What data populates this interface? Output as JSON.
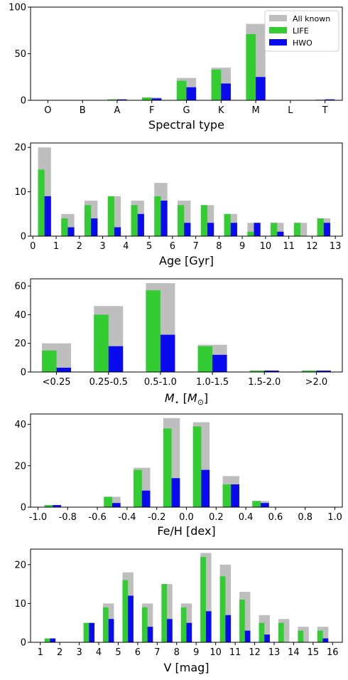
{
  "colors": {
    "all_known": "#bebebe",
    "life": "#33cc33",
    "hwo": "#0a0aee"
  },
  "legend_labels": [
    "All known",
    "LIFE",
    "HWO"
  ],
  "chart_data": [
    {
      "type": "bar",
      "id": "spectral",
      "xlabel": "Spectral type",
      "categories": [
        "O",
        "B",
        "A",
        "F",
        "G",
        "K",
        "M",
        "L",
        "T"
      ],
      "x_tick_labels": [
        "O",
        "B",
        "A",
        "F",
        "G",
        "K",
        "M",
        "L",
        "T"
      ],
      "ylim": [
        0,
        100
      ],
      "yticks": [
        0,
        50,
        100
      ],
      "legend": "top-right",
      "series": [
        {
          "name": "All known",
          "values": [
            0,
            0,
            1,
            3,
            24,
            35,
            82,
            0,
            1
          ]
        },
        {
          "name": "LIFE",
          "values": [
            0,
            0,
            1,
            3,
            21,
            33,
            71,
            0,
            0
          ]
        },
        {
          "name": "HWO",
          "values": [
            0,
            0,
            1,
            2,
            14,
            18,
            25,
            0,
            1
          ]
        }
      ]
    },
    {
      "type": "bar",
      "id": "age",
      "xlabel": "Age [Gyr]",
      "x": [
        0.5,
        1.5,
        2.5,
        3.5,
        4.5,
        5.5,
        6.5,
        7.5,
        8.5,
        9.5,
        10.5,
        11.5,
        12.5
      ],
      "bin_width": 1,
      "xlim": [
        -0.1,
        13.3
      ],
      "x_tick_values": [
        0,
        1,
        2,
        3,
        4,
        5,
        6,
        7,
        8,
        9,
        10,
        11,
        12,
        13
      ],
      "x_tick_labels": [
        "0",
        "1",
        "2",
        "3",
        "4",
        "5",
        "6",
        "7",
        "8",
        "9",
        "10",
        "11",
        "12",
        "13"
      ],
      "ylim": [
        0,
        21
      ],
      "yticks": [
        0,
        10,
        20
      ],
      "series": [
        {
          "name": "All known",
          "values": [
            20,
            5,
            8,
            9,
            8,
            12,
            8,
            7,
            5,
            3,
            3,
            3,
            4
          ]
        },
        {
          "name": "LIFE",
          "values": [
            15,
            4,
            7,
            9,
            7,
            9,
            7,
            7,
            5,
            1,
            3,
            3,
            4
          ]
        },
        {
          "name": "HWO",
          "values": [
            9,
            2,
            4,
            2,
            5,
            8,
            3,
            3,
            3,
            3,
            1,
            0,
            3
          ]
        }
      ]
    },
    {
      "type": "bar",
      "id": "mass",
      "xlabel": "M⋆ [M⊙]",
      "categories": [
        "<0.25",
        "0.25-0.5",
        "0.5-1.0",
        "1.0-1.5",
        "1.5-2.0",
        ">2.0"
      ],
      "x_tick_labels": [
        "<0.25",
        "0.25-0.5",
        "0.5-1.0",
        "1.0-1.5",
        "1.5-2.0",
        ">2.0"
      ],
      "ylim": [
        0,
        65
      ],
      "yticks": [
        0,
        20,
        40,
        60
      ],
      "series": [
        {
          "name": "All known",
          "values": [
            20,
            46,
            62,
            19,
            1,
            1
          ]
        },
        {
          "name": "LIFE",
          "values": [
            15,
            40,
            57,
            18,
            1,
            1
          ]
        },
        {
          "name": "HWO",
          "values": [
            3,
            18,
            26,
            12,
            1,
            1
          ]
        }
      ]
    },
    {
      "type": "bar",
      "id": "metallicity",
      "xlabel": "Fe/H [dex]",
      "x": [
        -0.9,
        -0.7,
        -0.5,
        -0.3,
        -0.1,
        0.1,
        0.3,
        0.5,
        0.7,
        0.9
      ],
      "bin_width": 0.2,
      "xlim": [
        -1.05,
        1.05
      ],
      "x_tick_values": [
        -1.0,
        -0.8,
        -0.6,
        -0.4,
        -0.2,
        0.0,
        0.2,
        0.4,
        0.6,
        0.8,
        1.0
      ],
      "x_tick_labels": [
        "-1.0",
        "-0.8",
        "-0.6",
        "-0.4",
        "-0.2",
        "0.0",
        "0.2",
        "0.4",
        "0.6",
        "0.8",
        "1.0"
      ],
      "ylim": [
        0,
        45
      ],
      "yticks": [
        0,
        20,
        40
      ],
      "series": [
        {
          "name": "All known",
          "values": [
            1,
            0,
            5,
            19,
            43,
            41,
            15,
            3,
            0,
            0
          ]
        },
        {
          "name": "LIFE",
          "values": [
            1,
            0,
            5,
            18,
            38,
            39,
            11,
            3,
            0,
            0
          ]
        },
        {
          "name": "HWO",
          "values": [
            1,
            0,
            2,
            8,
            14,
            18,
            11,
            2,
            0,
            0
          ]
        }
      ]
    },
    {
      "type": "bar",
      "id": "vmag",
      "xlabel": "V [mag]",
      "x": [
        1.5,
        2.5,
        3.5,
        4.5,
        5.5,
        6.5,
        7.5,
        8.5,
        9.5,
        10.5,
        11.5,
        12.5,
        13.5,
        14.5,
        15.5
      ],
      "bin_width": 1,
      "xlim": [
        0.5,
        16.5
      ],
      "x_tick_values": [
        1,
        2,
        3,
        4,
        5,
        6,
        7,
        8,
        9,
        10,
        11,
        12,
        13,
        14,
        15,
        16
      ],
      "x_tick_labels": [
        "1",
        "2",
        "3",
        "4",
        "5",
        "6",
        "7",
        "8",
        "9",
        "10",
        "11",
        "12",
        "13",
        "14",
        "15",
        "16"
      ],
      "ylim": [
        0,
        24
      ],
      "yticks": [
        0,
        10,
        20
      ],
      "series": [
        {
          "name": "All known",
          "values": [
            1,
            0,
            5,
            10,
            18,
            10,
            15,
            10,
            23,
            20,
            13,
            7,
            6,
            4,
            4
          ]
        },
        {
          "name": "LIFE",
          "values": [
            1,
            0,
            5,
            9,
            16,
            9,
            15,
            9,
            22,
            17,
            11,
            5,
            5,
            3,
            3
          ]
        },
        {
          "name": "HWO",
          "values": [
            1,
            0,
            5,
            6,
            12,
            4,
            6,
            5,
            8,
            7,
            3,
            2,
            0,
            0,
            1
          ]
        }
      ]
    }
  ]
}
